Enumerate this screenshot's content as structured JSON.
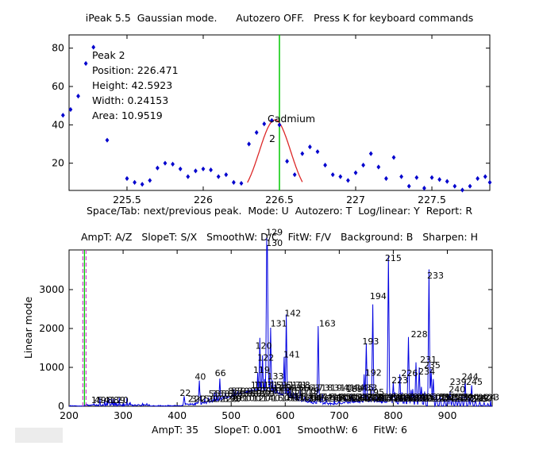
{
  "header": {
    "title": "iPeak 5.5  Gaussian mode.      Autozero OFF.   Press K for keyboard commands"
  },
  "colors": {
    "data_blue": "#0000CD",
    "spectrum_blue": "#0000E0",
    "fit_red": "#DC2828",
    "cursor_green": "#00C800",
    "cursor_magenta": "#D24FD2",
    "text": "#000000",
    "artifact_gray": "#ECECEC"
  },
  "chart_data": [
    {
      "type": "scatter",
      "xlabel": "Space/Tab: next/previous peak.  Mode: U  Autozero: T  Log/linear: Y  Report: R",
      "xlim": [
        225.12,
        227.88
      ],
      "ylim": [
        5.8,
        86.9
      ],
      "xtick_values": [
        225.5,
        226,
        226.5,
        227,
        227.5
      ],
      "xtick_labels": [
        "225.5",
        "226",
        "226.5",
        "227",
        "227.5"
      ],
      "ytick_values": [
        20,
        40,
        60,
        80
      ],
      "ytick_labels": [
        "20",
        "40",
        "60",
        "80"
      ],
      "points": [
        [
          225.08,
          45
        ],
        [
          225.13,
          48
        ],
        [
          225.18,
          55
        ],
        [
          225.23,
          72
        ],
        [
          225.28,
          80.5
        ],
        [
          225.37,
          32
        ],
        [
          225.5,
          12
        ],
        [
          225.55,
          10
        ],
        [
          225.6,
          9
        ],
        [
          225.65,
          11
        ],
        [
          225.7,
          17.5
        ],
        [
          225.75,
          20
        ],
        [
          225.8,
          19.5
        ],
        [
          225.85,
          17
        ],
        [
          225.9,
          13
        ],
        [
          225.95,
          16
        ],
        [
          226.0,
          17
        ],
        [
          226.05,
          16.5
        ],
        [
          226.1,
          13
        ],
        [
          226.15,
          14
        ],
        [
          226.2,
          10
        ],
        [
          226.25,
          9.5
        ],
        [
          226.3,
          30
        ],
        [
          226.35,
          36
        ],
        [
          226.4,
          40.5
        ],
        [
          226.45,
          42.3
        ],
        [
          226.5,
          40
        ],
        [
          226.55,
          21
        ],
        [
          226.6,
          14
        ],
        [
          226.65,
          25
        ],
        [
          226.7,
          28.5
        ],
        [
          226.75,
          26
        ],
        [
          226.8,
          19
        ],
        [
          226.85,
          14
        ],
        [
          226.9,
          13
        ],
        [
          226.95,
          11
        ],
        [
          227.0,
          15
        ],
        [
          227.05,
          19
        ],
        [
          227.1,
          25
        ],
        [
          227.15,
          18
        ],
        [
          227.2,
          12
        ],
        [
          227.25,
          23
        ],
        [
          227.3,
          13
        ],
        [
          227.35,
          8
        ],
        [
          227.4,
          12.5
        ],
        [
          227.45,
          7
        ],
        [
          227.5,
          12.5
        ],
        [
          227.55,
          11.5
        ],
        [
          227.6,
          10.5
        ],
        [
          227.65,
          8
        ],
        [
          227.7,
          6
        ],
        [
          227.75,
          8
        ],
        [
          227.8,
          12
        ],
        [
          227.85,
          13
        ],
        [
          227.88,
          10
        ]
      ],
      "fit_curve": {
        "center": 226.471,
        "amplitude": 41.4,
        "base": 1.2,
        "sigma": 0.1026,
        "x_from": 226.29,
        "x_to": 226.655
      },
      "cursor_x": 226.5,
      "annotations": {
        "peak_info": [
          "Peak 2",
          "Position: 226.471",
          "Height: 42.5923",
          "Width: 0.24153",
          "Area: 10.9519"
        ],
        "element": "Cadmium",
        "peak_number": "2"
      }
    },
    {
      "type": "line",
      "title": "AmpT: A/Z   SlopeT: S/X   SmoothW: D/C   FitW: F/V   Background: B   Sharpen: H",
      "xlabel": "AmpT: 35     SlopeT: 0.001     SmoothW: 6     FitW: 6",
      "ylabel": "Linear mode",
      "xlim": [
        200,
        983
      ],
      "ylim": [
        0,
        4020
      ],
      "xtick_values": [
        200,
        300,
        400,
        500,
        600,
        700,
        800,
        900
      ],
      "xtick_labels": [
        "200",
        "300",
        "400",
        "500",
        "600",
        "700",
        "800",
        "900"
      ],
      "ytick_values": [
        0,
        1000,
        2000,
        3000
      ],
      "ytick_labels": [
        "0",
        "1000",
        "2000",
        "3000"
      ],
      "cursor_green_x": 228.5,
      "cursor_magenta_x": [
        225.5,
        231.5
      ],
      "peaks": [
        [
          413,
          260
        ],
        [
          441,
          660
        ],
        [
          458,
          220
        ],
        [
          466,
          180
        ],
        [
          479,
          710
        ],
        [
          490,
          300
        ],
        [
          497,
          260
        ],
        [
          505,
          230
        ],
        [
          512,
          380
        ],
        [
          520,
          300
        ],
        [
          527,
          250
        ],
        [
          534,
          330
        ],
        [
          540,
          300
        ],
        [
          546,
          420
        ],
        [
          549,
          860
        ],
        [
          553,
          1760
        ],
        [
          558,
          1310
        ],
        [
          562,
          700
        ],
        [
          565.8,
          4330
        ],
        [
          567,
          4150
        ],
        [
          569,
          900
        ],
        [
          573,
          2020
        ],
        [
          577,
          660
        ],
        [
          581,
          540
        ],
        [
          585,
          420
        ],
        [
          590,
          380
        ],
        [
          598,
          1270
        ],
        [
          602,
          2360
        ],
        [
          606,
          480
        ],
        [
          610,
          420
        ],
        [
          615,
          360
        ],
        [
          620,
          300
        ],
        [
          628,
          430
        ],
        [
          636,
          250
        ],
        [
          645,
          200
        ],
        [
          661,
          2060
        ],
        [
          668,
          280
        ],
        [
          676,
          200
        ],
        [
          700,
          180
        ],
        [
          712,
          220
        ],
        [
          722,
          300
        ],
        [
          733,
          200
        ],
        [
          746,
          820
        ],
        [
          750,
          1620
        ],
        [
          762,
          2620
        ],
        [
          768,
          320
        ],
        [
          775,
          200
        ],
        [
          782,
          240
        ],
        [
          791,
          3870
        ],
        [
          796,
          300
        ],
        [
          800,
          620
        ],
        [
          803,
          360
        ],
        [
          806,
          170
        ],
        [
          812,
          820
        ],
        [
          816,
          360
        ],
        [
          822,
          280
        ],
        [
          828,
          1780
        ],
        [
          833,
          420
        ],
        [
          836,
          440
        ],
        [
          842,
          1130
        ],
        [
          848,
          1000
        ],
        [
          852,
          500
        ],
        [
          858,
          380
        ],
        [
          866,
          3520
        ],
        [
          870,
          960
        ],
        [
          874,
          700
        ],
        [
          880,
          300
        ],
        [
          887,
          250
        ],
        [
          895,
          200
        ],
        [
          901,
          280
        ],
        [
          905,
          360
        ],
        [
          910,
          240
        ],
        [
          916,
          200
        ],
        [
          921,
          180
        ],
        [
          927,
          250
        ],
        [
          933,
          680
        ],
        [
          940,
          200
        ],
        [
          945,
          540
        ],
        [
          952,
          160
        ],
        [
          960,
          120
        ],
        [
          968,
          90
        ],
        [
          975,
          70
        ]
      ],
      "peak_labels": [
        {
          "t": "129",
          "x": 580,
          "y": 4400
        },
        {
          "t": "130",
          "x": 580,
          "y": 4120
        },
        {
          "t": "215",
          "x": 800,
          "y": 3730
        },
        {
          "t": "233",
          "x": 878,
          "y": 3290
        },
        {
          "t": "194",
          "x": 772,
          "y": 2750
        },
        {
          "t": "163",
          "x": 678,
          "y": 2050
        },
        {
          "t": "142",
          "x": 614,
          "y": 2320
        },
        {
          "t": "131",
          "x": 588,
          "y": 2050
        },
        {
          "t": "228",
          "x": 848,
          "y": 1780
        },
        {
          "t": "193",
          "x": 758,
          "y": 1590
        },
        {
          "t": "120",
          "x": 560,
          "y": 1480
        },
        {
          "t": "141",
          "x": 612,
          "y": 1260
        },
        {
          "t": "122",
          "x": 564,
          "y": 1170
        },
        {
          "t": "231",
          "x": 865,
          "y": 1120
        },
        {
          "t": "235",
          "x": 872,
          "y": 980
        },
        {
          "t": "234",
          "x": 862,
          "y": 820
        },
        {
          "t": "119",
          "x": 556,
          "y": 860
        },
        {
          "t": "192",
          "x": 763,
          "y": 790
        },
        {
          "t": "226",
          "x": 830,
          "y": 780
        },
        {
          "t": "133",
          "x": 582,
          "y": 690
        },
        {
          "t": "66",
          "x": 480,
          "y": 780
        },
        {
          "t": "40",
          "x": 443,
          "y": 680
        },
        {
          "t": "244",
          "x": 942,
          "y": 680
        },
        {
          "t": "223",
          "x": 812,
          "y": 590
        },
        {
          "t": "245",
          "x": 950,
          "y": 550
        },
        {
          "t": "239",
          "x": 920,
          "y": 550
        },
        {
          "t": "189",
          "x": 728,
          "y": 370
        },
        {
          "t": "240",
          "x": 918,
          "y": 360
        },
        {
          "t": "22",
          "x": 415,
          "y": 270
        },
        {
          "t": "195",
          "x": 768,
          "y": 290
        },
        {
          "t": "246",
          "x": 958,
          "y": 110
        }
      ],
      "label_clusters": [
        {
          "t": "14594818290",
          "x": 241,
          "y": 85
        },
        {
          "t": "2324252627282930",
          "x": 420,
          "y": 110
        },
        {
          "t": "53565861636566686970",
          "x": 458,
          "y": 240
        },
        {
          "t": "8587909295979910103105107109",
          "x": 494,
          "y": 320
        },
        {
          "t": "9698100102104106108110112114",
          "x": 498,
          "y": 130
        },
        {
          "t": "111113115116117118",
          "x": 536,
          "y": 470
        },
        {
          "t": "13213413513613713813914014144353",
          "x": 578,
          "y": 400
        },
        {
          "t": "144145146147148149150151152153",
          "x": 600,
          "y": 160
        },
        {
          "t": "154156158160162164166168170172",
          "x": 642,
          "y": 125
        },
        {
          "t": "174176178179180182184186188190",
          "x": 692,
          "y": 135
        },
        {
          "t": "196198200202204206208210212214",
          "x": 766,
          "y": 160
        },
        {
          "t": "216218220221222224225227229230",
          "x": 802,
          "y": 120
        },
        {
          "t": "236237238241242243",
          "x": 886,
          "y": 150
        }
      ]
    }
  ]
}
